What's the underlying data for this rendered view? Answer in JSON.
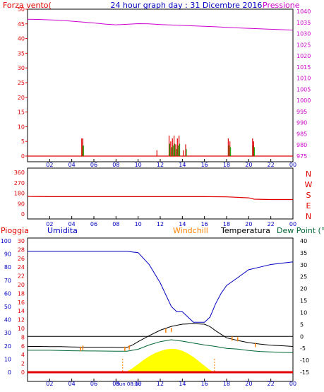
{
  "title": "24 hour graph day : 31 Dicembre 2016",
  "colors": {
    "wind": "#e00000",
    "pressure": "#cc00cc",
    "humidity": "#0000c0",
    "windchill": "#ff8000",
    "temperature": "#000000",
    "dewpoint": "#006633",
    "rain": "#e00000",
    "solar": "#ffff00",
    "axis_blue": "#0000c0",
    "grid": "#000000"
  },
  "top": {
    "left_label": "Forza vento(",
    "right_label": "Pressione",
    "left_ticks": [
      "50",
      "45",
      "40",
      "35",
      "30",
      "25",
      "20",
      "15",
      "10",
      "5",
      "0"
    ],
    "right_ticks": [
      "1040",
      "1035",
      "1030",
      "1025",
      "1020",
      "1015",
      "1010",
      "1005",
      "1000",
      "995",
      "990",
      "985",
      "980",
      "975"
    ]
  },
  "middle": {
    "left_ticks": [
      "360",
      "270",
      "180",
      "90",
      "0"
    ],
    "compass": [
      "N",
      "W",
      "S",
      "E",
      "N"
    ]
  },
  "bottom": {
    "labels": {
      "rain": "Pioggia",
      "humidity": "Umidita",
      "windchill": "Windchill",
      "temperature": "Temperatura",
      "dewpoint": "Dew Point (°C"
    },
    "humidity_ticks": [
      "100",
      "90",
      "80",
      "70",
      "60",
      "50",
      "40",
      "30",
      "20",
      "10",
      "0"
    ],
    "rain_ticks": [
      "30",
      "28",
      "26",
      "24",
      "22",
      "20",
      "18",
      "16",
      "14",
      "12",
      "10",
      "8",
      "6",
      "4",
      "2",
      "0"
    ],
    "temp_ticks": [
      "40",
      "35",
      "30",
      "25",
      "20",
      "15",
      "10",
      "5",
      "0",
      "-5",
      "-10",
      "-15"
    ],
    "sunrise_label": "Sun 08:0c"
  },
  "x_ticks": [
    "02",
    "04",
    "06",
    "08",
    "10",
    "12",
    "14",
    "16",
    "18",
    "20",
    "22",
    "00"
  ],
  "chart_data": [
    {
      "type": "line",
      "title": "24 hour graph day : 31 Dicembre 2016",
      "ylabel": "Forza vento(",
      "y2label": "Pressione",
      "ylim": [
        0,
        50
      ],
      "y2lim": [
        975,
        1041
      ],
      "series": [
        {
          "name": "Pressione",
          "axis": "right",
          "x": [
            0,
            1,
            2,
            3,
            4,
            5,
            6,
            7,
            8,
            9,
            10,
            11,
            12,
            13,
            14,
            15,
            16,
            17,
            18,
            19,
            20,
            21,
            22,
            23,
            24
          ],
          "values": [
            1036.5,
            1036.4,
            1036.2,
            1036.0,
            1035.6,
            1035.2,
            1034.8,
            1034.3,
            1034.0,
            1034.2,
            1034.5,
            1034.4,
            1034.1,
            1033.9,
            1033.7,
            1033.5,
            1033.3,
            1033.1,
            1032.8,
            1032.6,
            1032.4,
            1032.2,
            1032.0,
            1031.8,
            1031.6
          ]
        },
        {
          "name": "Forza vento",
          "axis": "left",
          "gusts": [
            [
              4.9,
              6
            ],
            [
              5.0,
              6
            ],
            [
              12.8,
              7
            ],
            [
              12.95,
              5
            ],
            [
              13.1,
              6
            ],
            [
              13.25,
              7
            ],
            [
              13.4,
              4
            ],
            [
              13.55,
              6
            ],
            [
              13.7,
              7
            ],
            [
              14.1,
              2
            ],
            [
              14.3,
              4
            ],
            [
              18.15,
              6
            ],
            [
              18.3,
              5
            ],
            [
              20.35,
              6
            ],
            [
              20.45,
              5
            ],
            [
              11.7,
              2
            ]
          ]
        }
      ]
    },
    {
      "type": "line",
      "ylabel": "direction",
      "ylim": [
        0,
        360
      ],
      "series": [
        {
          "name": "direction",
          "x": [
            0,
            0.1,
            2,
            4,
            6,
            8,
            10,
            12,
            14,
            16,
            18,
            20,
            20.5,
            22,
            24
          ],
          "values": [
            155,
            152,
            150,
            150,
            150,
            150,
            150,
            150,
            150,
            150,
            148,
            140,
            128,
            125,
            125
          ]
        }
      ]
    },
    {
      "type": "line",
      "ylabel": "Umidita",
      "y2label": "Temperatura",
      "ylim": [
        0,
        100
      ],
      "y2lim": [
        -15,
        40
      ],
      "series": [
        {
          "name": "Umidita",
          "axis": "humidity",
          "x": [
            0,
            1,
            2,
            3,
            4,
            5,
            6,
            7,
            8,
            9,
            10,
            11,
            12,
            13,
            13.5,
            14,
            14.5,
            15,
            16,
            16.5,
            17,
            17.5,
            18,
            19,
            20,
            21,
            22,
            23,
            24
          ],
          "values": [
            92,
            92,
            92,
            92,
            92,
            92,
            92,
            92,
            92,
            92,
            91,
            82,
            68,
            50,
            46,
            46,
            42,
            38,
            38,
            42,
            52,
            60,
            66,
            72,
            78,
            80,
            82,
            83,
            84
          ]
        },
        {
          "name": "Temperatura",
          "axis": "temp",
          "x": [
            0,
            1,
            2,
            3,
            4,
            5,
            6,
            7,
            8,
            9,
            9.5,
            10,
            11,
            12,
            13,
            14,
            15,
            16,
            16.5,
            17,
            18,
            19,
            20,
            21,
            22,
            23,
            24
          ],
          "values": [
            -4.2,
            -4.2,
            -4.3,
            -4.3,
            -4.4,
            -4.5,
            -4.5,
            -4.5,
            -4.6,
            -4.6,
            -3.6,
            -2.2,
            0.3,
            2.6,
            4.2,
            5.1,
            5.3,
            5.1,
            4.1,
            2.4,
            -0.6,
            -1.7,
            -2.6,
            -3.2,
            -3.7,
            -3.9,
            -4.2
          ]
        },
        {
          "name": "Windchill",
          "axis": "temp",
          "x": [
            4.8,
            5.0,
            8.8,
            9.2,
            12.5,
            13.0,
            18.5,
            19.0,
            20.6
          ],
          "values": [
            -5.2,
            -4.8,
            -5.2,
            -4.6,
            2.4,
            2.7,
            -0.9,
            -1.2,
            -3.6
          ]
        },
        {
          "name": "Dew Point",
          "axis": "temp",
          "x": [
            0,
            2,
            4,
            6,
            8,
            9,
            10,
            11,
            12,
            13,
            14,
            15,
            16,
            17,
            18,
            19,
            20,
            21,
            22,
            23,
            24
          ],
          "values": [
            -5.8,
            -5.8,
            -6.0,
            -6.1,
            -6.2,
            -6.2,
            -5.4,
            -3.6,
            -2.2,
            -1.4,
            -2.0,
            -2.8,
            -3.6,
            -4.2,
            -5.0,
            -5.3,
            -5.9,
            -6.3,
            -6.5,
            -6.7,
            -6.8
          ]
        },
        {
          "name": "Solare",
          "axis": "temp",
          "x": [
            8.6,
            9,
            9.5,
            10,
            10.5,
            11,
            11.5,
            12,
            12.5,
            13,
            13.5,
            14,
            14.5,
            15,
            15.5,
            16,
            16.5,
            16.9
          ],
          "values": [
            -15,
            -14.8,
            -13.5,
            -11.8,
            -10,
            -8.5,
            -7.2,
            -6.3,
            -5.6,
            -5.3,
            -5.5,
            -6.2,
            -7.3,
            -8.8,
            -10.6,
            -12.5,
            -14.3,
            -15
          ]
        },
        {
          "name": "Pioggia",
          "axis": "rain",
          "x": [
            0,
            24
          ],
          "values": [
            0,
            0
          ]
        }
      ]
    }
  ]
}
